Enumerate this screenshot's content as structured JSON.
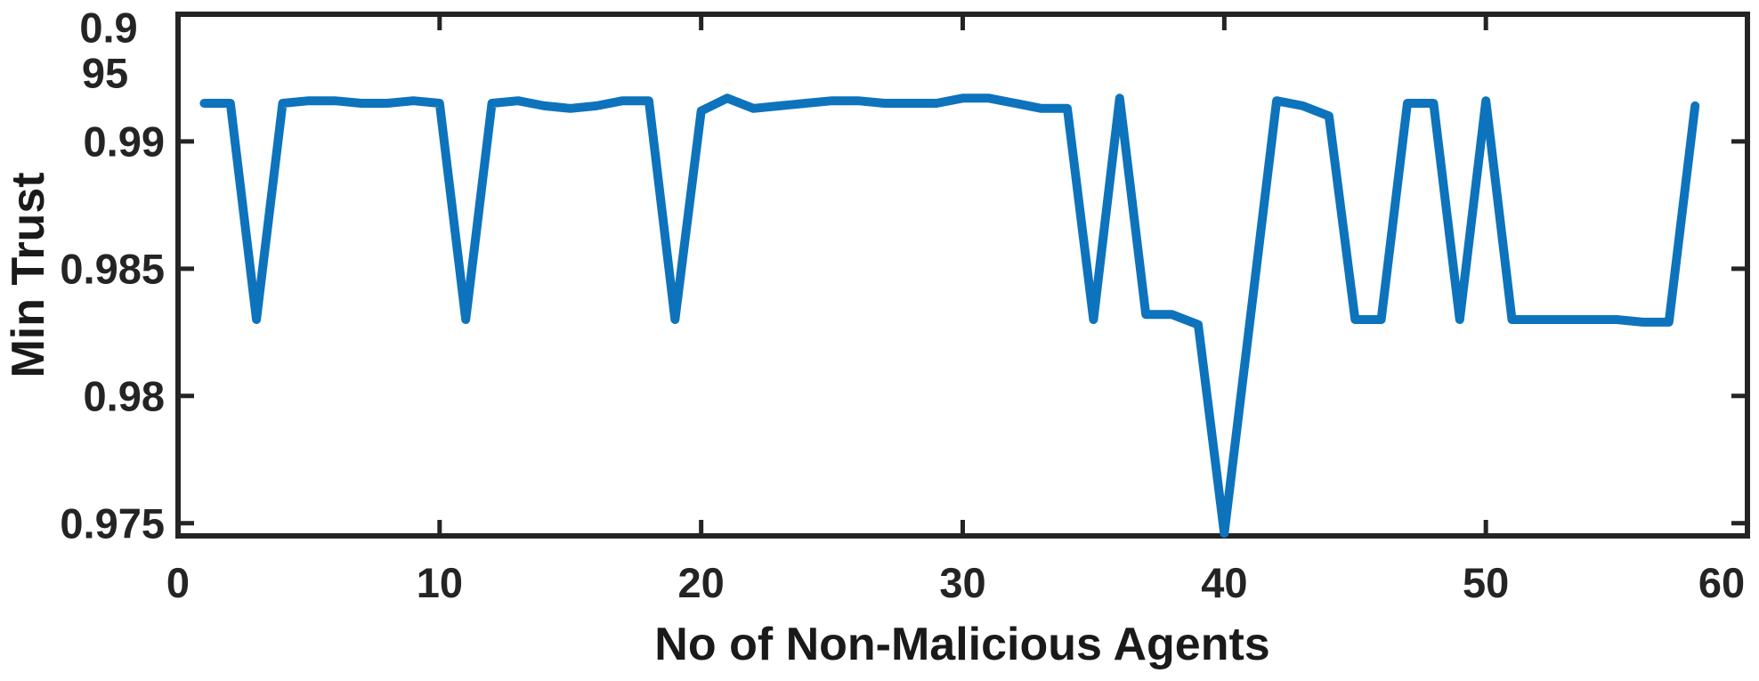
{
  "chart_data": {
    "type": "line",
    "title": "",
    "xlabel": "No of Non-Malicious Agents",
    "ylabel": "Min Trust",
    "x_ticks": [
      0,
      10,
      20,
      30,
      40,
      50,
      60
    ],
    "x_tick_labels": [
      "0",
      "10",
      "20",
      "30",
      "40",
      "50",
      "60"
    ],
    "y_ticks": [
      0.975,
      0.98,
      0.985,
      0.99,
      0.995
    ],
    "y_tick_labels": [
      "0.975",
      "0.98",
      "0.985",
      "0.99",
      "0.995"
    ],
    "y_top_label_wrapped_lines": [
      "0.9",
      "95"
    ],
    "xlim": [
      0,
      60
    ],
    "ylim": [
      0.9745,
      0.995
    ],
    "grid": false,
    "legend": null,
    "line_color": "#0D73BC",
    "axis_color": "#242424",
    "x": [
      1,
      2,
      3,
      4,
      5,
      6,
      7,
      8,
      9,
      10,
      11,
      12,
      13,
      14,
      15,
      16,
      17,
      18,
      19,
      20,
      21,
      22,
      23,
      24,
      25,
      26,
      27,
      28,
      29,
      30,
      31,
      32,
      33,
      34,
      35,
      36,
      37,
      38,
      39,
      40,
      41,
      42,
      43,
      44,
      45,
      46,
      47,
      48,
      49,
      50,
      51,
      52,
      53,
      54,
      55,
      56,
      57,
      58
    ],
    "y": [
      0.9915,
      0.9915,
      0.983,
      0.9915,
      0.9916,
      0.9916,
      0.9915,
      0.9915,
      0.9916,
      0.9915,
      0.983,
      0.9915,
      0.9916,
      0.9914,
      0.9913,
      0.9914,
      0.9916,
      0.9916,
      0.983,
      0.9912,
      0.9917,
      0.9913,
      0.9914,
      0.9915,
      0.9916,
      0.9916,
      0.9915,
      0.9915,
      0.9915,
      0.9917,
      0.9917,
      0.9915,
      0.9913,
      0.9913,
      0.983,
      0.9917,
      0.9832,
      0.9832,
      0.9828,
      0.9746,
      0.9831,
      0.9916,
      0.9914,
      0.991,
      0.983,
      0.983,
      0.9915,
      0.9915,
      0.983,
      0.9916,
      0.983,
      0.983,
      0.983,
      0.983,
      0.983,
      0.9829,
      0.9829,
      0.9914
    ]
  }
}
